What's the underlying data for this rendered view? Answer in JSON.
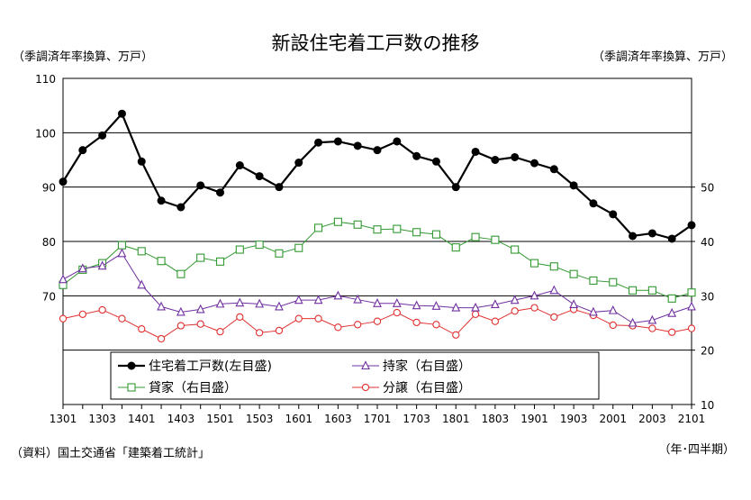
{
  "chart_data": {
    "type": "line",
    "title": "新設住宅着工戸数の推移",
    "left_axis_unit": "（季調済年率換算、万戸）",
    "right_axis_unit": "（季調済年率換算、万戸）",
    "source": "（資料）国土交通省「建築着工統計」",
    "xlabel": "（年･四半期）",
    "x_tick_labels": [
      "1301",
      "1303",
      "1401",
      "1403",
      "1501",
      "1503",
      "1601",
      "1603",
      "1701",
      "1703",
      "1801",
      "1803",
      "1901",
      "1903",
      "2001",
      "2003",
      "2101"
    ],
    "x": [
      "1301",
      "1302",
      "1303",
      "1304",
      "1401",
      "1402",
      "1403",
      "1404",
      "1501",
      "1502",
      "1503",
      "1504",
      "1601",
      "1602",
      "1603",
      "1604",
      "1701",
      "1702",
      "1703",
      "1704",
      "1801",
      "1802",
      "1803",
      "1804",
      "1901",
      "1902",
      "1903",
      "1904",
      "2001",
      "2002",
      "2003",
      "2004",
      "2101"
    ],
    "y_left": {
      "min": 50,
      "max": 110,
      "ticks": [
        70,
        80,
        90,
        100,
        110
      ]
    },
    "y_right": {
      "min": 10,
      "max": 70,
      "ticks": [
        10,
        20,
        30,
        40,
        50
      ]
    },
    "grid": true,
    "legend_position": "bottom-center",
    "series": [
      {
        "name": "住宅着工戸数(左目盛)",
        "axis": "left",
        "color": "#000000",
        "marker": "filled-circle",
        "values": [
          91,
          96.8,
          99.5,
          103.5,
          94.7,
          87.5,
          86.3,
          90.3,
          89,
          94,
          92,
          90,
          94.5,
          98.2,
          98.4,
          97.6,
          96.8,
          98.4,
          95.7,
          94.7,
          90,
          96.5,
          95,
          95.5,
          94.4,
          93.3,
          90.3,
          87,
          85,
          81,
          81.5,
          80.5,
          83
        ]
      },
      {
        "name": "持家（右目盛）",
        "axis": "right",
        "color": "#7030a0",
        "marker": "open-triangle",
        "values": [
          33,
          35,
          35.5,
          37.8,
          32,
          28,
          27,
          27.5,
          28.5,
          28.7,
          28.5,
          28,
          29.2,
          29.2,
          30,
          29.3,
          28.6,
          28.6,
          28.2,
          28.1,
          27.8,
          27.8,
          28.4,
          29.2,
          30,
          31,
          28.4,
          27,
          27.3,
          25,
          25.5,
          26.8,
          28
        ]
      },
      {
        "name": "貸家（右目盛）",
        "axis": "right",
        "color": "#339933",
        "marker": "open-square",
        "values": [
          32,
          34.8,
          36,
          39.3,
          38.2,
          36.4,
          34,
          37,
          36.3,
          38.5,
          39.4,
          37.8,
          38.8,
          42.5,
          43.6,
          43.1,
          42.2,
          42.3,
          41.7,
          41.3,
          38.9,
          40.8,
          40.3,
          38.5,
          36,
          35.4,
          34,
          32.8,
          32.5,
          31,
          31,
          29.5,
          30.6
        ]
      },
      {
        "name": "分譲（右目盛）",
        "axis": "right",
        "color": "#e03030",
        "marker": "open-circle",
        "values": [
          25.8,
          26.6,
          27.4,
          25.8,
          23.9,
          22.1,
          24.5,
          24.8,
          23.4,
          26.1,
          23.2,
          23.6,
          25.8,
          25.8,
          24.2,
          24.7,
          25.3,
          26.9,
          25.1,
          24.7,
          22.8,
          26.6,
          25.3,
          27.2,
          27.8,
          26.1,
          27.5,
          26.4,
          24.6,
          24.5,
          24,
          23.3,
          24
        ]
      }
    ]
  }
}
